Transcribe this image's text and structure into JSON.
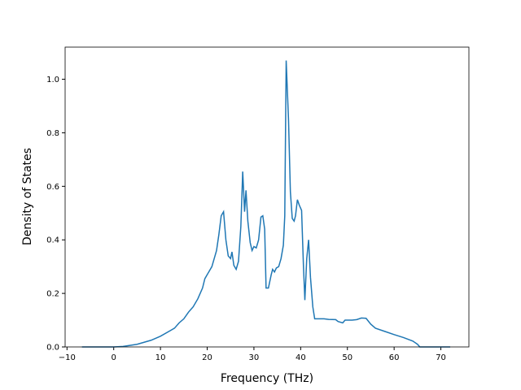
{
  "chart_data": {
    "type": "line",
    "xlabel": "Frequency (THz)",
    "ylabel": "Density of States",
    "x": [
      -6.8,
      0,
      2,
      5,
      8,
      10,
      12,
      13,
      14,
      15,
      16,
      17,
      18,
      19,
      19.5,
      20,
      21,
      22,
      22.5,
      23,
      23.5,
      24,
      24.5,
      25,
      25.3,
      25.7,
      26.2,
      26.7,
      27.2,
      27.6,
      28,
      28.3,
      28.7,
      29.2,
      29.6,
      30,
      30.5,
      31,
      31.5,
      31.9,
      32.3,
      32.6,
      33.1,
      33.7,
      34,
      34.4,
      34.8,
      35.3,
      35.8,
      36.3,
      36.6,
      36.9,
      37.4,
      37.8,
      38.2,
      38.6,
      38.9,
      39.3,
      39.7,
      40.2,
      40.6,
      40.9,
      41.3,
      41.7,
      42.1,
      42.6,
      43,
      44,
      45,
      46,
      47.5,
      48,
      49,
      49.5,
      51,
      52,
      53,
      54,
      55,
      56,
      58,
      60,
      62,
      64,
      65,
      65.5,
      72
    ],
    "series": [
      {
        "color": "#1f77b4",
        "values": [
          0,
          0,
          0.002,
          0.01,
          0.025,
          0.04,
          0.06,
          0.07,
          0.09,
          0.105,
          0.13,
          0.15,
          0.18,
          0.22,
          0.255,
          0.27,
          0.3,
          0.36,
          0.42,
          0.49,
          0.505,
          0.4,
          0.34,
          0.33,
          0.355,
          0.305,
          0.29,
          0.32,
          0.45,
          0.655,
          0.505,
          0.585,
          0.47,
          0.39,
          0.36,
          0.375,
          0.37,
          0.4,
          0.485,
          0.49,
          0.44,
          0.22,
          0.22,
          0.27,
          0.29,
          0.28,
          0.295,
          0.3,
          0.33,
          0.38,
          0.49,
          1.07,
          0.85,
          0.58,
          0.48,
          0.47,
          0.49,
          0.55,
          0.53,
          0.51,
          0.3,
          0.175,
          0.33,
          0.4,
          0.26,
          0.15,
          0.105,
          0.105,
          0.105,
          0.103,
          0.102,
          0.095,
          0.09,
          0.1,
          0.1,
          0.102,
          0.108,
          0.107,
          0.085,
          0.07,
          0.058,
          0.046,
          0.035,
          0.022,
          0.01,
          0,
          0
        ]
      }
    ],
    "xlim": [
      -10.4,
      76
    ],
    "ylim": [
      0,
      1.12
    ],
    "xticks": [
      {
        "value": -10,
        "label": "−10"
      },
      0,
      10,
      20,
      30,
      40,
      50,
      60,
      70
    ],
    "yticks": [
      {
        "value": 0,
        "label": "0.0"
      },
      {
        "value": 0.2,
        "label": "0.2"
      },
      {
        "value": 0.4,
        "label": "0.4"
      },
      {
        "value": 0.6,
        "label": "0.6"
      },
      {
        "value": 0.8,
        "label": "0.8"
      },
      {
        "value": 1,
        "label": "1.0"
      }
    ]
  }
}
